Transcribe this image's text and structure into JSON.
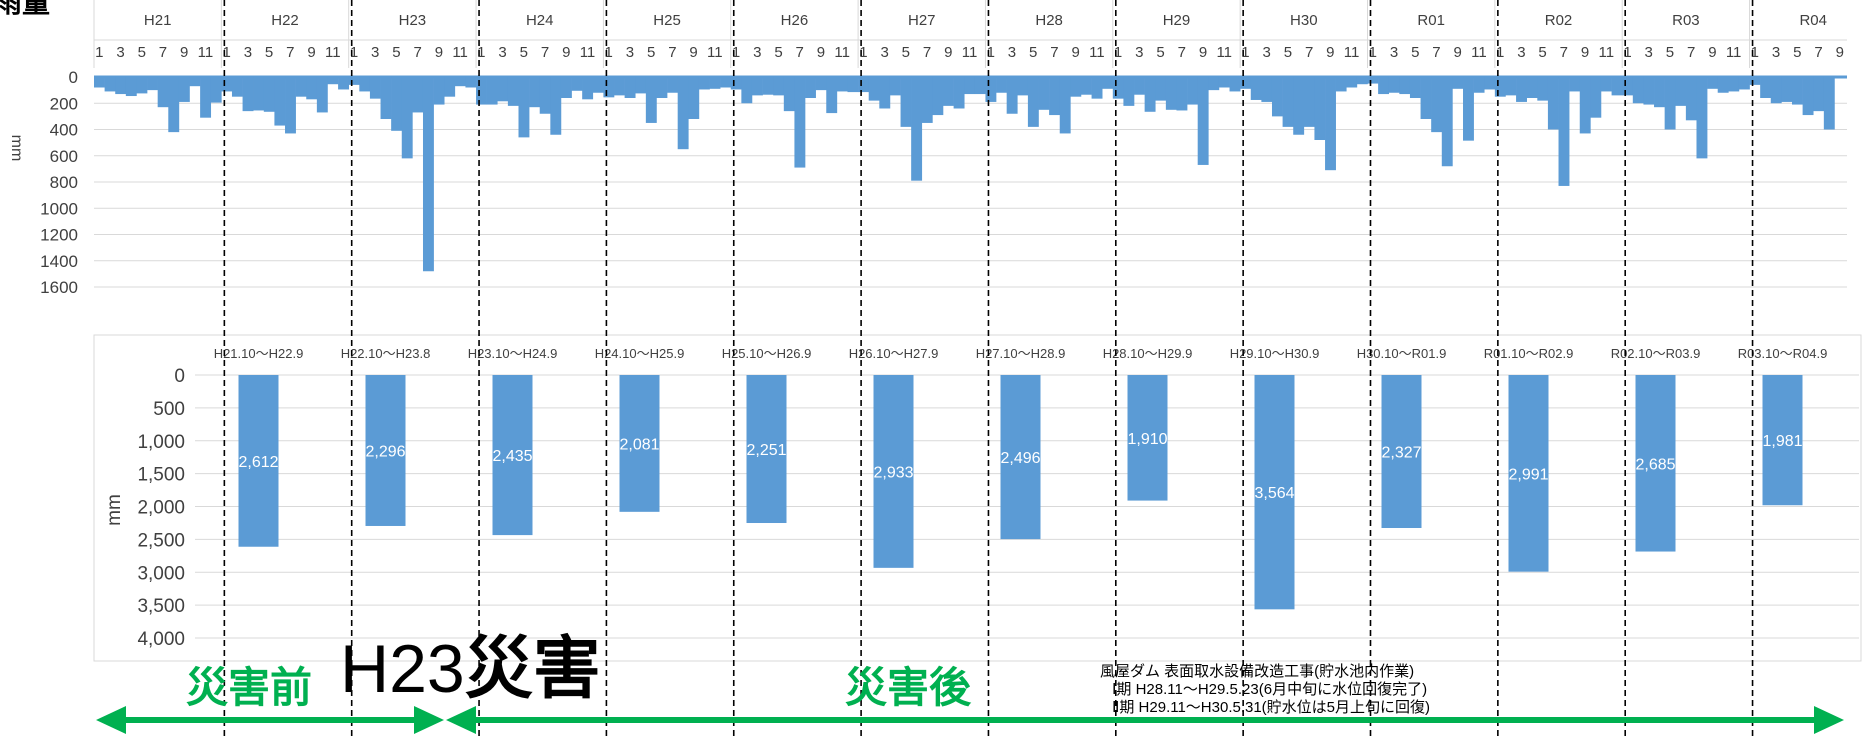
{
  "colors": {
    "bar": "#5b9bd5",
    "grid": "#d9d9d9",
    "divider": "#000000",
    "arrow": "#00b050",
    "label_green": "#00b050",
    "text": "#404040"
  },
  "page": {
    "corner_title": "雨量"
  },
  "monthly_chart": {
    "ylabel": "mm",
    "years": [
      "H21",
      "H22",
      "H23",
      "H24",
      "H25",
      "H26",
      "H27",
      "H28",
      "H29",
      "H30",
      "R01",
      "R02",
      "R03",
      "R04"
    ],
    "month_ticks": [
      "1",
      "3",
      "5",
      "7",
      "9",
      "11"
    ]
  },
  "annual_chart": {
    "ylabel": "mm",
    "y_ticks": [
      "0",
      "500",
      "1,000",
      "1,500",
      "2,000",
      "2,500",
      "3,000",
      "3,500",
      "4,000"
    ]
  },
  "chart_data": [
    {
      "type": "bar",
      "title": "",
      "ylabel": "mm",
      "orientation": "inverted",
      "ylim": [
        0,
        1600
      ],
      "y_ticks": [
        0,
        200,
        400,
        600,
        800,
        1000,
        1200,
        1400,
        1600
      ],
      "start_month": "H21.1",
      "values": [
        80,
        110,
        130,
        145,
        125,
        100,
        230,
        420,
        190,
        70,
        310,
        195,
        110,
        150,
        260,
        255,
        265,
        370,
        430,
        150,
        170,
        270,
        55,
        95,
        60,
        110,
        165,
        320,
        410,
        620,
        270,
        1480,
        210,
        150,
        70,
        80,
        210,
        210,
        185,
        220,
        460,
        230,
        280,
        440,
        160,
        105,
        170,
        120,
        155,
        140,
        160,
        125,
        350,
        160,
        120,
        550,
        320,
        95,
        90,
        80,
        95,
        200,
        140,
        135,
        140,
        260,
        690,
        160,
        100,
        275,
        110,
        115,
        115,
        180,
        240,
        140,
        380,
        790,
        350,
        290,
        220,
        240,
        130,
        130,
        190,
        120,
        280,
        140,
        380,
        250,
        290,
        430,
        150,
        135,
        165,
        90,
        165,
        220,
        135,
        265,
        180,
        250,
        255,
        210,
        670,
        100,
        80,
        110,
        90,
        175,
        190,
        300,
        380,
        440,
        380,
        480,
        710,
        110,
        80,
        55,
        50,
        130,
        120,
        130,
        160,
        320,
        420,
        680,
        90,
        485,
        120,
        95,
        150,
        140,
        190,
        160,
        180,
        400,
        830,
        110,
        430,
        310,
        110,
        140,
        140,
        200,
        210,
        230,
        400,
        220,
        330,
        620,
        90,
        120,
        110,
        95,
        60,
        160,
        200,
        190,
        210,
        290,
        260,
        400
      ],
      "categories_by_year": [
        "H21",
        "H22",
        "H23",
        "H24",
        "H25",
        "H26",
        "H27",
        "H28",
        "H29",
        "H30",
        "R01",
        "R02",
        "R03",
        "R04"
      ]
    },
    {
      "type": "bar",
      "title": "",
      "ylabel": "mm",
      "orientation": "inverted",
      "ylim": [
        0,
        4000
      ],
      "categories": [
        "H21.10〜H22.9",
        "H22.10〜H23.8",
        "H23.10〜H24.9",
        "H24.10〜H25.9",
        "H25.10〜H26.9",
        "H26.10〜H27.9",
        "H27.10〜H28.9",
        "H28.10〜H29.9",
        "H29.10〜H30.9",
        "H30.10〜R01.9",
        "R01.10〜R02.9",
        "R02.10〜R03.9",
        "R03.10〜R04.9"
      ],
      "values": [
        2612,
        2296,
        2435,
        2081,
        2251,
        2933,
        2496,
        1910,
        3564,
        2327,
        2991,
        2685,
        1981
      ],
      "value_labels": [
        "2,612",
        "2,296",
        "2,435",
        "2,081",
        "2,251",
        "2,933",
        "2,496",
        "1,910",
        "3,564",
        "2,327",
        "2,991",
        "2,685",
        "1,981"
      ]
    }
  ],
  "annotations": {
    "before_label": "災害前",
    "event_label_prefix": "H23",
    "event_label_suffix": "災害",
    "after_label": "災害後",
    "work_title": "風屋ダム 表面取水設備改造工事(貯水池内作業)",
    "work_phase1": "Ⅰ期 H28.11〜H29.5.23(6月中旬に水位回復完了)",
    "work_phase2": "Ⅱ期 H29.11〜H30.5.31(貯水位は5月上旬に回復)"
  }
}
